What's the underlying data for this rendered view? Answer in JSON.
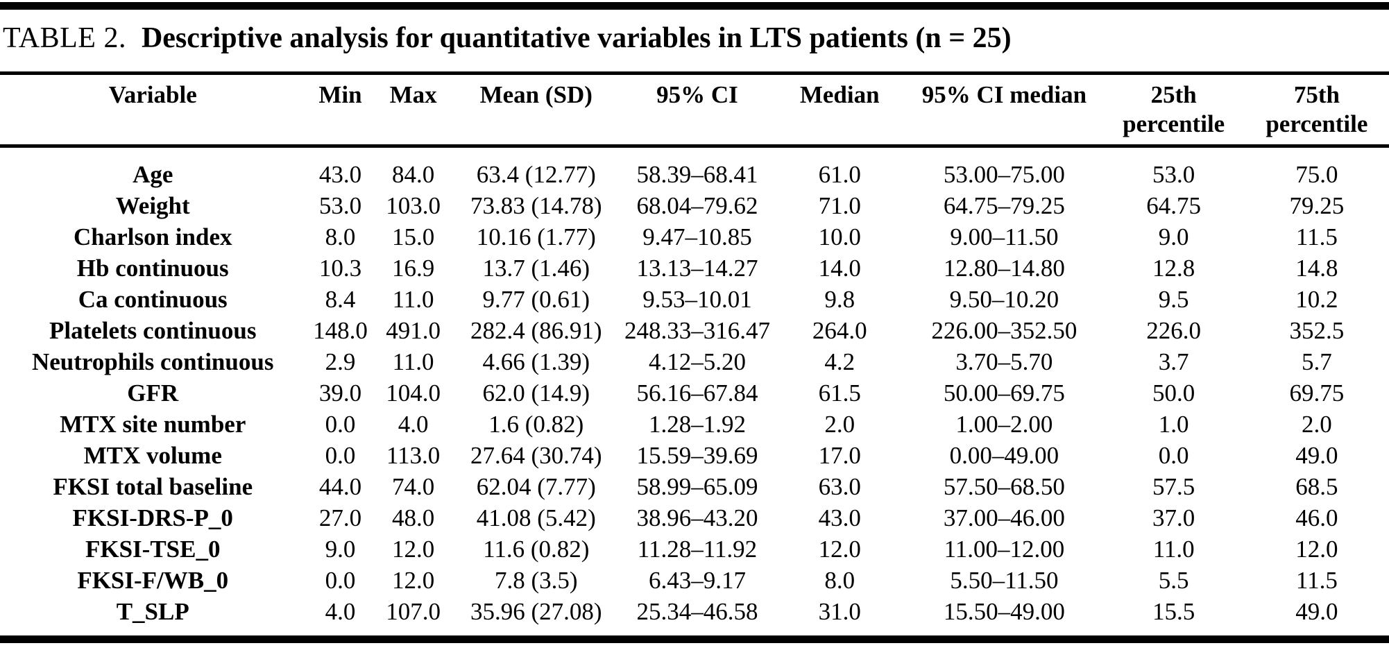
{
  "title": {
    "label": "TABLE 2.",
    "text": "Descriptive analysis for quantitative variables in LTS patients (n = 25)"
  },
  "colors": {
    "background": "#ffffff",
    "text": "#000000",
    "rule": "#000000"
  },
  "table": {
    "columns": [
      {
        "line1": "Variable",
        "line2": ""
      },
      {
        "line1": "Min",
        "line2": ""
      },
      {
        "line1": "Max",
        "line2": ""
      },
      {
        "line1": "Mean (SD)",
        "line2": ""
      },
      {
        "line1": "95% CI",
        "line2": ""
      },
      {
        "line1": "Median",
        "line2": ""
      },
      {
        "line1": "95% CI median",
        "line2": ""
      },
      {
        "line1": "25th",
        "line2": "percentile"
      },
      {
        "line1": "75th",
        "line2": "percentile"
      }
    ],
    "rows": [
      {
        "variable": "Age",
        "values": [
          "43.0",
          "84.0",
          "63.4 (12.77)",
          "58.39–68.41",
          "61.0",
          "53.00–75.00",
          "53.0",
          "75.0"
        ]
      },
      {
        "variable": "Weight",
        "values": [
          "53.0",
          "103.0",
          "73.83 (14.78)",
          "68.04–79.62",
          "71.0",
          "64.75–79.25",
          "64.75",
          "79.25"
        ]
      },
      {
        "variable": "Charlson index",
        "values": [
          "8.0",
          "15.0",
          "10.16 (1.77)",
          "9.47–10.85",
          "10.0",
          "9.00–11.50",
          "9.0",
          "11.5"
        ]
      },
      {
        "variable": "Hb continuous",
        "values": [
          "10.3",
          "16.9",
          "13.7 (1.46)",
          "13.13–14.27",
          "14.0",
          "12.80–14.80",
          "12.8",
          "14.8"
        ]
      },
      {
        "variable": "Ca continuous",
        "values": [
          "8.4",
          "11.0",
          "9.77 (0.61)",
          "9.53–10.01",
          "9.8",
          "9.50–10.20",
          "9.5",
          "10.2"
        ]
      },
      {
        "variable": "Platelets continuous",
        "values": [
          "148.0",
          "491.0",
          "282.4 (86.91)",
          "248.33–316.47",
          "264.0",
          "226.00–352.50",
          "226.0",
          "352.5"
        ]
      },
      {
        "variable": "Neutrophils continuous",
        "values": [
          "2.9",
          "11.0",
          "4.66 (1.39)",
          "4.12–5.20",
          "4.2",
          "3.70–5.70",
          "3.7",
          "5.7"
        ]
      },
      {
        "variable": "GFR",
        "values": [
          "39.0",
          "104.0",
          "62.0 (14.9)",
          "56.16–67.84",
          "61.5",
          "50.00–69.75",
          "50.0",
          "69.75"
        ]
      },
      {
        "variable": "MTX site number",
        "values": [
          "0.0",
          "4.0",
          "1.6 (0.82)",
          "1.28–1.92",
          "2.0",
          "1.00–2.00",
          "1.0",
          "2.0"
        ]
      },
      {
        "variable": "MTX volume",
        "values": [
          "0.0",
          "113.0",
          "27.64 (30.74)",
          "15.59–39.69",
          "17.0",
          "0.00–49.00",
          "0.0",
          "49.0"
        ]
      },
      {
        "variable": "FKSI total baseline",
        "values": [
          "44.0",
          "74.0",
          "62.04 (7.77)",
          "58.99–65.09",
          "63.0",
          "57.50–68.50",
          "57.5",
          "68.5"
        ]
      },
      {
        "variable": "FKSI-DRS-P_0",
        "values": [
          "27.0",
          "48.0",
          "41.08 (5.42)",
          "38.96–43.20",
          "43.0",
          "37.00–46.00",
          "37.0",
          "46.0"
        ]
      },
      {
        "variable": "FKSI-TSE_0",
        "values": [
          "9.0",
          "12.0",
          "11.6 (0.82)",
          "11.28–11.92",
          "12.0",
          "11.00–12.00",
          "11.0",
          "12.0"
        ]
      },
      {
        "variable": "FKSI-F/WB_0",
        "values": [
          "0.0",
          "12.0",
          "7.8 (3.5)",
          "6.43–9.17",
          "8.0",
          "5.50–11.50",
          "5.5",
          "11.5"
        ]
      },
      {
        "variable": "T_SLP",
        "values": [
          "4.0",
          "107.0",
          "35.96 (27.08)",
          "25.34–46.58",
          "31.0",
          "15.50–49.00",
          "15.5",
          "49.0"
        ]
      }
    ]
  }
}
